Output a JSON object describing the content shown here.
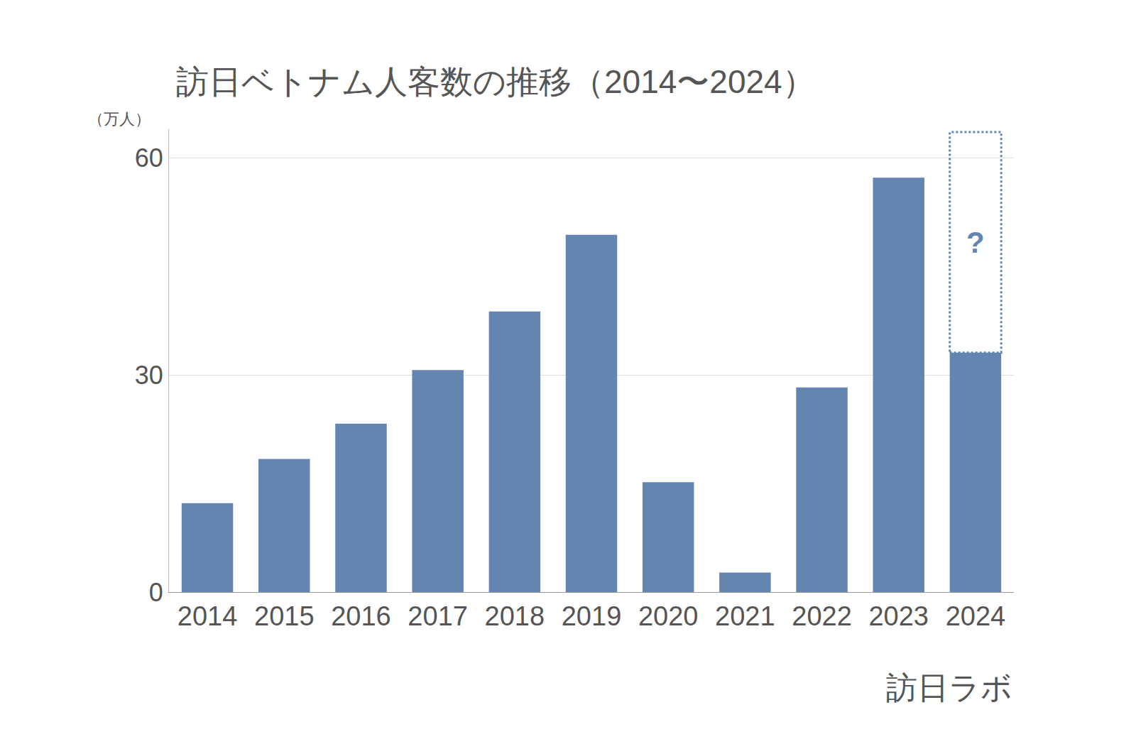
{
  "chart_data": {
    "type": "bar",
    "title": "訪日ベトナム人客数の推移（2014〜2024）",
    "y_unit_label": "（万人）",
    "source": "訪日ラボ",
    "categories": [
      "2014",
      "2015",
      "2016",
      "2017",
      "2018",
      "2019",
      "2020",
      "2021",
      "2022",
      "2023",
      "2024"
    ],
    "values": [
      12.3,
      18.4,
      23.3,
      30.7,
      38.8,
      49.4,
      15.2,
      2.7,
      28.3,
      57.3,
      33.1
    ],
    "color": "#6585b1",
    "ylim": [
      0,
      64
    ],
    "yticks": [
      0,
      30,
      60
    ],
    "grid": true,
    "annotations": [
      {
        "category": "2024",
        "text": "?",
        "outline_to": 63.6
      }
    ]
  }
}
